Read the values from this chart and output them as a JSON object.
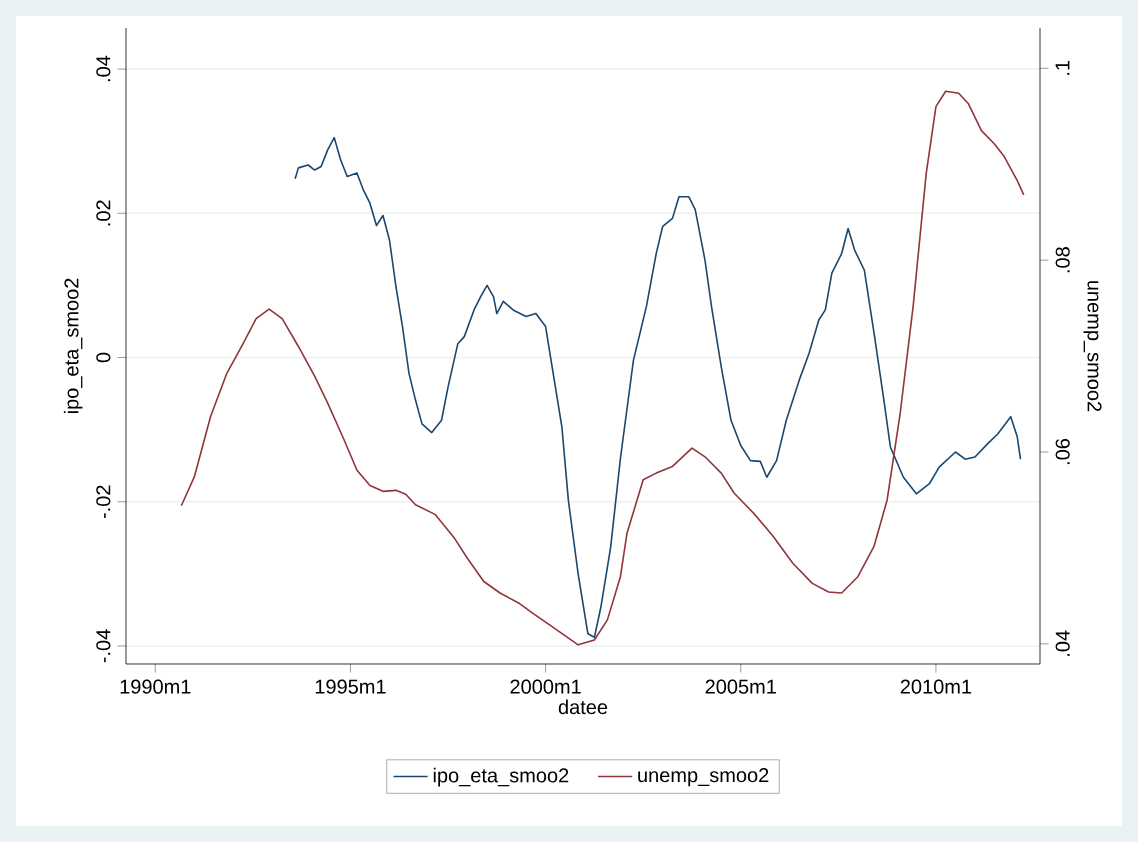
{
  "chart_data": {
    "type": "line",
    "xlabel": "datee",
    "ylabel": "ipo_eta_smoo2",
    "y2label": "unemp_smoo2",
    "xlim": [
      "1989-04",
      "2012-09"
    ],
    "ylim": [
      -0.0425,
      0.0457
    ],
    "y2lim": [
      0.0379,
      0.1042
    ],
    "xticks": [
      {
        "value": "1990-01",
        "label": "1990m1"
      },
      {
        "value": "1995-01",
        "label": "1995m1"
      },
      {
        "value": "2000-01",
        "label": "2000m1"
      },
      {
        "value": "2005-01",
        "label": "2005m1"
      },
      {
        "value": "2010-01",
        "label": "2010m1"
      }
    ],
    "yticks": [
      {
        "value": -0.04,
        "label": "-.04"
      },
      {
        "value": -0.02,
        "label": "-.02"
      },
      {
        "value": 0,
        "label": "0"
      },
      {
        "value": 0.02,
        "label": ".02"
      },
      {
        "value": 0.04,
        "label": ".04"
      }
    ],
    "y2ticks": [
      {
        "value": 0.04,
        "label": ".04"
      },
      {
        "value": 0.06,
        "label": ".06"
      },
      {
        "value": 0.08,
        "label": ".08"
      },
      {
        "value": 0.1,
        "label": ".1"
      }
    ],
    "grid": "y",
    "legend": "bottom",
    "series": [
      {
        "name": "ipo_eta_smoo2",
        "color": "#1a476f",
        "x": [
          "1993-08",
          "1993-09",
          "1993-12",
          "1994-02",
          "1994-04",
          "1994-06",
          "1994-08",
          "1994-10",
          "1994-12",
          "1995-03",
          "1995-05",
          "1995-07",
          "1995-09",
          "1995-11",
          "1996-01",
          "1996-03",
          "1996-05",
          "1996-07",
          "1996-09",
          "1996-11",
          "1997-02",
          "1997-05",
          "1997-07",
          "1997-10",
          "1997-12",
          "1998-03",
          "1998-05",
          "1998-07",
          "1998-09",
          "1998-10",
          "1998-12",
          "1999-03",
          "1999-07",
          "1999-10",
          "2000-01",
          "2000-03",
          "2000-06",
          "2000-08",
          "2000-11",
          "2001-02",
          "2001-04",
          "2001-06",
          "2001-09",
          "2001-12",
          "2002-04",
          "2002-08",
          "2002-11",
          "2003-01",
          "2003-04",
          "2003-06",
          "2003-09",
          "2003-11",
          "2004-02",
          "2004-04",
          "2004-07",
          "2004-10",
          "2005-01",
          "2005-04",
          "2005-07",
          "2005-09",
          "2005-12",
          "2006-03",
          "2006-07",
          "2006-10",
          "2007-01",
          "2007-03",
          "2007-05",
          "2007-08",
          "2007-10",
          "2007-12",
          "2008-03",
          "2008-06",
          "2008-09",
          "2008-11",
          "2009-03",
          "2009-07",
          "2009-11",
          "2010-02",
          "2010-07",
          "2010-10",
          "2011-01",
          "2011-05",
          "2011-08",
          "2011-12",
          "2012-02",
          "2012-03"
        ],
        "values": [
          0.0248,
          0.0263,
          0.0267,
          0.026,
          0.0265,
          0.0288,
          0.0305,
          0.0274,
          0.0251,
          0.0256,
          0.0232,
          0.0214,
          0.0183,
          0.0197,
          0.0163,
          0.0098,
          0.0043,
          -0.0022,
          -0.0059,
          -0.0092,
          -0.0104,
          -0.0087,
          -0.0041,
          0.0019,
          0.0029,
          0.0066,
          0.0084,
          0.01,
          0.0084,
          0.0061,
          0.0078,
          0.0066,
          0.0057,
          0.0061,
          0.0043,
          -0.0013,
          -0.0096,
          -0.0198,
          -0.03,
          -0.0383,
          -0.0388,
          -0.0346,
          -0.0263,
          -0.014,
          -0.0004,
          0.0071,
          0.0144,
          0.0182,
          0.0193,
          0.0223,
          0.0223,
          0.0205,
          0.0135,
          0.0071,
          -0.0013,
          -0.0087,
          -0.0122,
          -0.0143,
          -0.0144,
          -0.0166,
          -0.0143,
          -0.0087,
          -0.0031,
          0.0006,
          0.0052,
          0.0066,
          0.0117,
          0.0144,
          0.0179,
          0.0149,
          0.0121,
          0.0033,
          -0.0059,
          -0.0124,
          -0.0166,
          -0.0189,
          -0.0175,
          -0.0152,
          -0.0131,
          -0.0141,
          -0.0138,
          -0.0119,
          -0.0106,
          -0.0082,
          -0.011,
          -0.0141
        ]
      },
      {
        "name": "unemp_smoo2",
        "color": "#90353b",
        "axis": "y2",
        "x": [
          "1990-09",
          "1991-01",
          "1991-06",
          "1991-11",
          "1992-04",
          "1992-08",
          "1992-12",
          "1993-04",
          "1993-09",
          "1994-02",
          "1994-06",
          "1994-11",
          "1995-03",
          "1995-07",
          "1995-11",
          "1996-03",
          "1996-06",
          "1996-09",
          "1997-03",
          "1997-09",
          "1998-01",
          "1998-06",
          "1998-11",
          "1999-05",
          "1999-09",
          "2000-03",
          "2000-11",
          "2001-04",
          "2001-08",
          "2001-12",
          "2002-02",
          "2002-07",
          "2002-11",
          "2003-04",
          "2003-10",
          "2004-02",
          "2004-07",
          "2004-11",
          "2005-05",
          "2005-11",
          "2006-05",
          "2006-11",
          "2007-04",
          "2007-08",
          "2008-01",
          "2008-06",
          "2008-10",
          "2009-02",
          "2009-06",
          "2009-10",
          "2010-01",
          "2010-04",
          "2010-08",
          "2010-11",
          "2011-03",
          "2011-07",
          "2011-10",
          "2012-02",
          "2012-04"
        ],
        "values": [
          0.0544,
          0.0574,
          0.0637,
          0.0682,
          0.0713,
          0.0739,
          0.0749,
          0.0739,
          0.071,
          0.0679,
          0.0651,
          0.0613,
          0.0581,
          0.0565,
          0.0559,
          0.056,
          0.0556,
          0.0545,
          0.0535,
          0.051,
          0.0489,
          0.0465,
          0.0453,
          0.0442,
          0.0432,
          0.0418,
          0.0399,
          0.0404,
          0.0425,
          0.047,
          0.0515,
          0.0571,
          0.0578,
          0.0585,
          0.0604,
          0.0595,
          0.0578,
          0.0557,
          0.0536,
          0.0512,
          0.0484,
          0.0463,
          0.0454,
          0.0453,
          0.047,
          0.0502,
          0.055,
          0.064,
          0.0752,
          0.089,
          0.096,
          0.0976,
          0.0974,
          0.0963,
          0.0935,
          0.0921,
          0.0908,
          0.0883,
          0.0868
        ]
      }
    ]
  }
}
